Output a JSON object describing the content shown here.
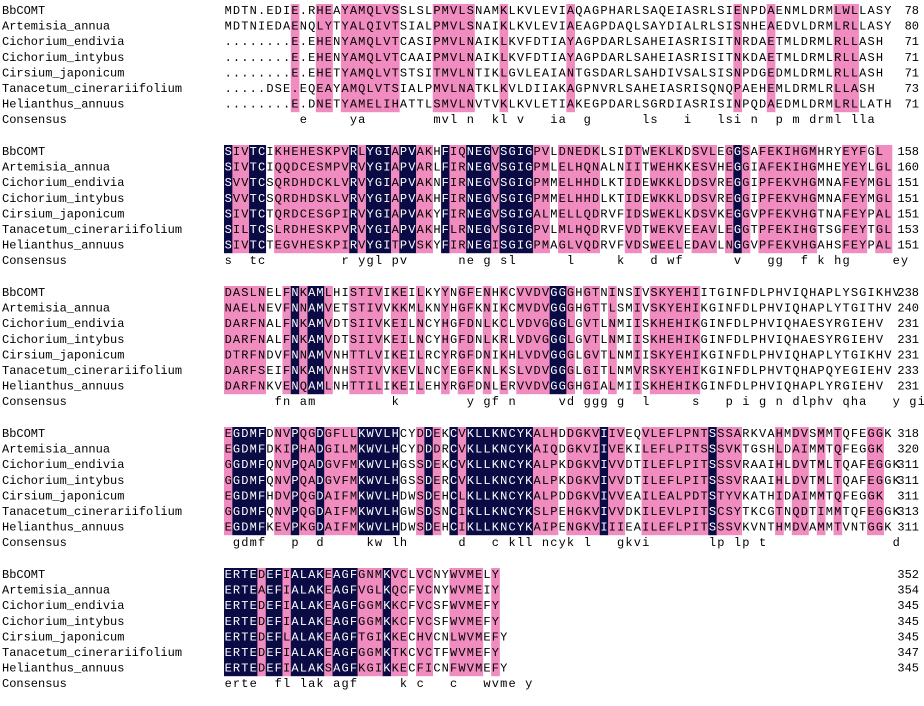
{
  "colors": {
    "identical": "#0a0a44",
    "similar": "#f08cbf",
    "text_dark": "#000000",
    "text_light": "#ffffff"
  },
  "consensus_label": "Consensus",
  "blocks": [
    {
      "rows": [
        {
          "name": "BbCOMT",
          "seq": "MDTN.EDIE.RHEAYAMQLVSSLSLPMVLSNAMKLKVLEVIAQAGPHARLSAQEIASRLSIENPDAENMLDRMLWLLASY",
          "end": "78"
        },
        {
          "name": "Artemisia_annua",
          "seq": "MDTNIEDAENQLYTYALQIVTSIALPMVLSNAIKLKVLEVIAEAGPDAQLSAYDIALRLSISNHEAEDVLDRMLRLLASY",
          "end": "80"
        },
        {
          "name": "Cichorium_endivia",
          "seq": "........E.EHENYAMQLVTCASIPMVLNAIKLKVFDTIAYAGPDARLSAHEIASRISITNRDAETMLDRMLRLLASH",
          "end": "71"
        },
        {
          "name": "Cichorium_intybus",
          "seq": "........E.EHENYAMQLVTCAAIPMVLNAIKLKVFDTIAYAGPDARLSAHEIASRISITNKDAETMLDRMLRLLASH",
          "end": "71"
        },
        {
          "name": "Cirsium_japonicum",
          "seq": "........E.EHETYAMQLVTSTSITMVLNTIKLGVLEAIANTGSDARLSAHDIVSALSISNPDGEDMLDRMLRLLASH",
          "end": "71"
        },
        {
          "name": "Tanacetum_cinerariifolium",
          "seq": ".....DSE.EQEAYAMQLVTSIALPMVLNATKLKVLDIIAKAGPNVRLSAHEIASRISQNQPAEHEMLDRMLRLLASH",
          "end": "73"
        },
        {
          "name": "Helianthus_annuus",
          "seq": "........E.DNETYAMELIHATTLSMVLNVTVKLKVLETIAKEGPDARLSGRDIASRISINPQDAEDMLDRMLRLLATH",
          "end": "71"
        }
      ],
      "consensus": "         e     ya        mvl n  kl v   ia  g      ls   i   lsi n  p m drml lla  "
    },
    {
      "rows": [
        {
          "name": "BbCOMT",
          "seq": "SIVTCIKHEHESKPVRLYGIAPVAKHFIQNEGVSGIGPVLDNEDKLSIDTWEKLKDSVLEGGSAFEKIHGMHRYEYFGL",
          "end": "158"
        },
        {
          "name": "Artemisia_annua",
          "seq": "SIVTCIQQDCESMPVRVYGIAPVARLFIRNEGVSGIGPMLELHQNALNIITWEHKKESVHEGGIAFEKIHGMHEYEYLGL",
          "end": "160"
        },
        {
          "name": "Cichorium_endivia",
          "seq": "SVVTCSQRDHDCKLVRVYGIAPVAKNFIRNEGVSGIGPMMELHHDLKTIDEWKKLDDSVREGGIPFEKVHGMNAFEYMGL",
          "end": "151"
        },
        {
          "name": "Cichorium_intybus",
          "seq": "SVVTCSQRDHDSKLVRVYGIAPVAKHFIRNEGVSGIGPMMELHHDLKTIDEWKKLDDSVREGGIPFEKVHGMNAFEYMGL",
          "end": "151"
        },
        {
          "name": "Cirsium_japonicum",
          "seq": "SIVTCTQRDCESGPIRVYGIAPVAKYFIRNEGVSGIGALMELLQDRVFIDSWEKLKDSVKEGGVPFEKVHGTNAFEYPAL",
          "end": "151"
        },
        {
          "name": "Tanacetum_cinerariifolium",
          "seq": "SILTCSLRDHESKPVRVYGIAPVAKHFLRNEGVSGIGPVLMLHQDRVFVDTWEKVEEAVLEGGTPFEKIHGTSGFEYTGL",
          "end": "153"
        },
        {
          "name": "Helianthus_annuus",
          "seq": "SIVTCTEGVHESKPIRVYGITPVSKYFIRNEGISGIGPMAGLVQDRVFVDSWEELEDAVLNGGVPFEKVHGAHSFEYPAL",
          "end": "151"
        }
      ],
      "consensus": "s  tc         r ygl pv      ne g sl      l     k   d wf      v   gg  f k hg     ey  l"
    },
    {
      "rows": [
        {
          "name": "BbCOMT",
          "seq": "DASLNELFNKAMLHISTIVIKEILKYYNGFENHKCVVDVGGGHGTNINSIVSKYEHIITGINFDLPHVIQHAPLYSGIKHV",
          "end": "238"
        },
        {
          "name": "Artemisia_annua",
          "seq": "NAELNEVFNNAMVETSTIVVKKMLKNYHGFKNIKCMVDVGGGHGTTLSMIVSKYEHIKGINFDLPHVIQHAPLYTGITHV",
          "end": "240"
        },
        {
          "name": "Cichorium_endivia",
          "seq": "DARFNALFNKAMVDTSIIVKEILNCYHGFDNLKCLVDVGGGLGVTLNMIISKHEHIKGINFDLPHVIQHAESYRGIEHV",
          "end": "231"
        },
        {
          "name": "Cichorium_intybus",
          "seq": "DARFNALFNKAMVDTSIIVKEILNCYHGFDNLKRLVDVGGGLGVTLNMIISKHEHIKGINFDLPHVIQHAESYRGIEHV",
          "end": "231"
        },
        {
          "name": "Cirsium_japonicum",
          "seq": "DTRFNDVFNNAMVNHTTLVIKEILRCYRGFDNIKHLVDVGGGLGVTLNMIISKYEHIKGINFDLPHVIQHAPLYTGIKHV",
          "end": "231"
        },
        {
          "name": "Tanacetum_cinerariifolium",
          "seq": "DARFSEIFNKAMVNHSTIVVKEVLNCYEGFKNLKSLVDVGGGLGITLNMVRSKYEHIKGINFDLPHVTQHAPQYEGIEHV",
          "end": "233"
        },
        {
          "name": "Helianthus_annuus",
          "seq": "DARFNKVENQAMLNHTTILIKEILEHYRGFDNLERVVDVGGGHGIALMIISKHEHIKGINFDLPHVIQHAPLYRGIEHV",
          "end": "231"
        }
      ],
      "consensus": "      fn am         k        y gf n     vd ggg g  l     s   p i g n dlphv qha   y gi hv"
    },
    {
      "rows": [
        {
          "name": "BbCOMT",
          "seq": "EGDMFDNVPQGDGFLLKWVLHCYDDEKCVKLLKNCYKALHDDGKVIIVEQVLEFLPNTSSSARKVAHMDVSMMTQFEGGK",
          "end": "318"
        },
        {
          "name": "Artemisia_annua",
          "seq": "EGDMFDKIPHADGILMKWVLHCYDDDRCVKLLKNCYKAIQDGKVIIVEKILEFLPITSSSVKTGSHLDAIMMTQFEGGK",
          "end": "320"
        },
        {
          "name": "Cichorium_endivia",
          "seq": "GGDMFQNVPQADGVFMKWVLHGSSDEKCVKLLKNCYKALPKDGKVIVVDTILEFLPITSSSVRAAIHLDVTMLTQAFEGGK",
          "end": "311"
        },
        {
          "name": "Cichorium_intybus",
          "seq": "GGDMFQNVPQADGVFMKWVLHGSSDERCVKLLKNCYKALPKDGKVIVVDTILEFLPITSSSVRAAIHLDVTMLTQAFEGGK",
          "end": "311"
        },
        {
          "name": "Cirsium_japonicum",
          "seq": "EGDMFHDVPQGDAIFMKWVLHDWSDEHCLKLLKNCYKALPDDGKVIVVEAILEALPDTSTYVKATHIDAIMMTQFEGGK",
          "end": "311"
        },
        {
          "name": "Tanacetum_cinerariifolium",
          "seq": "GGDMFQNVPQGDAIFMKWVLHGWSDSNCIKLLKNCYKSLPEHGKVIVVDKILEVLPITSCSYTKCGTNQDTIMMTQFEGGK",
          "end": "313"
        },
        {
          "name": "Helianthus_annuus",
          "seq": "EGDMFKEVPKGDAIFMKWVLHDWSDEHCIKLLKNCYKAIPENGKVIIIEAILEFLPITSSSVKVNTHMDVAMMTVNTGGK",
          "end": "311"
        }
      ],
      "consensus": " gdmf   p  d     kw lh      d   c kll ncyk l   gkvi       lp lp t               d   m  t     ggk"
    },
    {
      "rows": [
        {
          "name": "BbCOMT",
          "seq": "ERTEDEFIALAKEAGFGNMKVCLVCNYWVMELY",
          "end": "352"
        },
        {
          "name": "Artemisia_annua",
          "seq": "ERTEAEFIALAKEAGFVGLKQCFVCNYWVMEIY",
          "end": "354"
        },
        {
          "name": "Cichorium_endivia",
          "seq": "ERTEDEFIALAKEAGFGGMKKCFVCSFWVMEFY",
          "end": "345"
        },
        {
          "name": "Cichorium_intybus",
          "seq": "ERTEDEFIALAKEAGFGGMKKCFVCSFWVMEFY",
          "end": "345"
        },
        {
          "name": "Cirsium_japonicum",
          "seq": "ERTEDEFLALAKEAGFTGIKKECHVCNLWVMEFY",
          "end": "345"
        },
        {
          "name": "Tanacetum_cinerariifolium",
          "seq": "ERTEDEFIALAKEAGFGGMKTKCVCTFWVMEFY",
          "end": "347"
        },
        {
          "name": "Helianthus_annuus",
          "seq": "ERTEDEFIALAKSAGFKGIKKECFICNFWVMEFY",
          "end": "345"
        }
      ],
      "consensus": "erte  fl lak agf     k c   c   wvme y"
    }
  ]
}
